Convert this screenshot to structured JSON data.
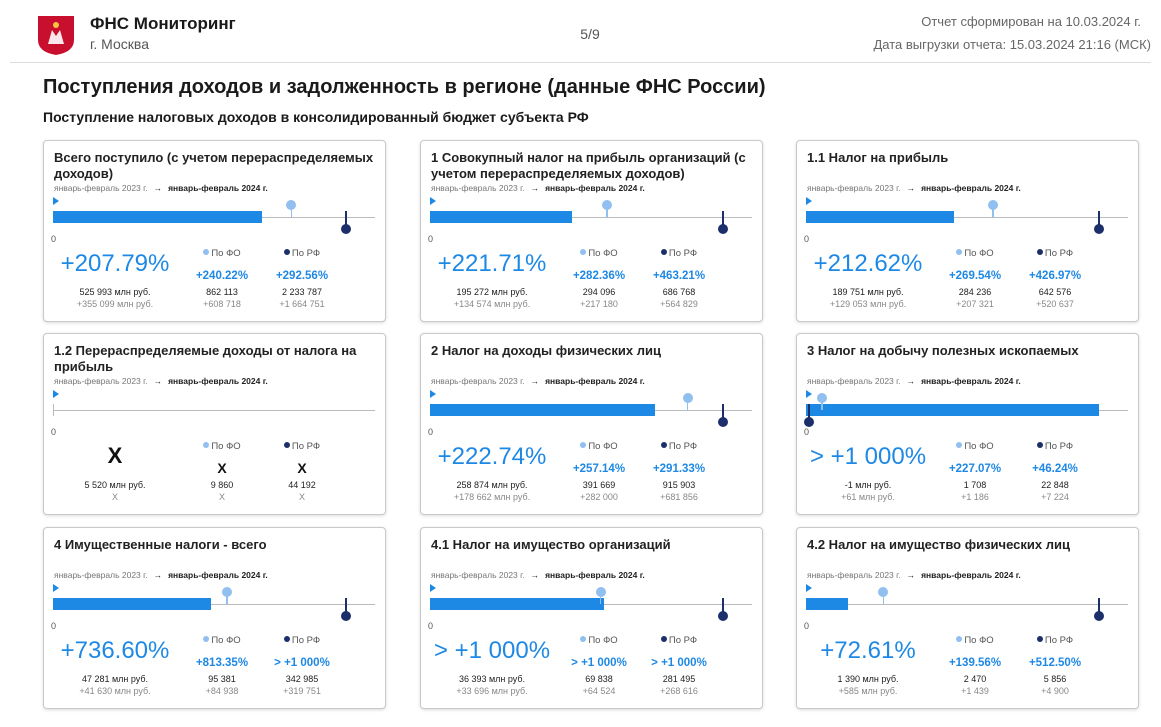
{
  "header": {
    "title": "ФНС Мониторинг",
    "subtitle": "г. Москва",
    "page": "5/9",
    "report_date": "Отчет сформирован на 10.03.2024 г.",
    "export_date": "Дата выгрузки отчета: 15.03.2024 21:16 (МСК)"
  },
  "section": {
    "title": "Поступления доходов и задолженность в регионе (данные ФНС России)",
    "subtitle": "Поступление налоговых доходов в консолидированный бюджет субъекта РФ"
  },
  "cards": [
    {
      "title": "Всего поступило (с учетом перераспределяемых доходов)",
      "period_from": "январь-февраль 2023 г.",
      "period_to": "январь-февраль 2024 г.",
      "zero": "0",
      "main": "+207.79%",
      "value": "525 993 млн руб.",
      "delta": "+355 099 млн руб.",
      "fo_label": "По ФО",
      "fo_pct": "+240.22%",
      "fo_value": "862 113",
      "fo_delta": "+608 718",
      "rf_label": "По РФ",
      "rf_pct": "+292.56%",
      "rf_value": "2 233 787",
      "rf_delta": "+1 664 751"
    },
    {
      "title": "1 Совокупный налог на прибыль организаций (с учетом перераспределяемых доходов)",
      "period_from": "январь-февраль 2023 г.",
      "period_to": "январь-февраль 2024 г.",
      "zero": "0",
      "main": "+221.71%",
      "value": "195 272 млн руб.",
      "delta": "+134 574 млн руб.",
      "fo_label": "По ФО",
      "fo_pct": "+282.36%",
      "fo_value": "294 096",
      "fo_delta": "+217 180",
      "rf_label": "По РФ",
      "rf_pct": "+463.21%",
      "rf_value": "686 768",
      "rf_delta": "+564 829"
    },
    {
      "title": "1.1 Налог на прибыль",
      "period_from": "январь-февраль 2023 г.",
      "period_to": "январь-февраль 2024 г.",
      "zero": "0",
      "main": "+212.62%",
      "value": "189 751 млн руб.",
      "delta": "+129 053 млн руб.",
      "fo_label": "По ФО",
      "fo_pct": "+269.54%",
      "fo_value": "284 236",
      "fo_delta": "+207 321",
      "rf_label": "По РФ",
      "rf_pct": "+426.97%",
      "rf_value": "642 576",
      "rf_delta": "+520 637"
    },
    {
      "title": "1.2 Перераспределяемые доходы от налога на прибыль",
      "period_from": "январь-февраль 2023 г.",
      "period_to": "январь-февраль 2024 г.",
      "zero": "0",
      "main": "X",
      "value": "5 520 млн руб.",
      "delta": "X",
      "fo_label": "По ФО",
      "fo_pct": "X",
      "fo_value": "9 860",
      "fo_delta": "X",
      "rf_label": "По РФ",
      "rf_pct": "X",
      "rf_value": "44 192",
      "rf_delta": "X"
    },
    {
      "title": "2 Налог на доходы физических лиц",
      "period_from": "январь-февраль 2023 г.",
      "period_to": "январь-февраль 2024 г.",
      "zero": "0",
      "main": "+222.74%",
      "value": "258 874 млн руб.",
      "delta": "+178 662 млн руб.",
      "fo_label": "По ФО",
      "fo_pct": "+257.14%",
      "fo_value": "391 669",
      "fo_delta": "+282 000",
      "rf_label": "По РФ",
      "rf_pct": "+291.33%",
      "rf_value": "915 903",
      "rf_delta": "+681 856"
    },
    {
      "title": "3 Налог на добычу полезных ископаемых",
      "period_from": "январь-февраль 2023 г.",
      "period_to": "январь-февраль 2024 г.",
      "zero": "0",
      "main": "> +1 000%",
      "value": "-1 млн руб.",
      "delta": "+61 млн руб.",
      "fo_label": "По ФО",
      "fo_pct": "+227.07%",
      "fo_value": "1 708",
      "fo_delta": "+1 186",
      "rf_label": "По РФ",
      "rf_pct": "+46.24%",
      "rf_value": "22 848",
      "rf_delta": "+7 224"
    },
    {
      "title": "4 Имущественные налоги - всего",
      "period_from": "январь-февраль 2023 г.",
      "period_to": "январь-февраль 2024 г.",
      "zero": "0",
      "main": "+736.60%",
      "value": "47 281 млн руб.",
      "delta": "+41 630 млн руб.",
      "fo_label": "По ФО",
      "fo_pct": "+813.35%",
      "fo_value": "95 381",
      "fo_delta": "+84 938",
      "rf_label": "По РФ",
      "rf_pct": "> +1 000%",
      "rf_value": "342 985",
      "rf_delta": "+319 751"
    },
    {
      "title": "4.1 Налог на имущество организаций",
      "period_from": "январь-февраль 2023 г.",
      "period_to": "январь-февраль 2024 г.",
      "zero": "0",
      "main": "> +1 000%",
      "value": "36 393 млн руб.",
      "delta": "+33 696 млн руб.",
      "fo_label": "По ФО",
      "fo_pct": "> +1 000%",
      "fo_value": "69 838",
      "fo_delta": "+64 524",
      "rf_label": "По РФ",
      "rf_pct": "> +1 000%",
      "rf_value": "281 495",
      "rf_delta": "+268 616"
    },
    {
      "title": "4.2 Налог на имущество физических лиц",
      "period_from": "январь-февраль 2023 г.",
      "period_to": "январь-февраль 2024 г.",
      "zero": "0",
      "main": "+72.61%",
      "value": "1 390 млн руб.",
      "delta": "+585 млн руб.",
      "fo_label": "По ФО",
      "fo_pct": "+139.56%",
      "fo_value": "2 470",
      "fo_delta": "+1 439",
      "rf_label": "По РФ",
      "rf_pct": "+512.50%",
      "rf_value": "5 856",
      "rf_delta": "+4 900"
    }
  ]
}
